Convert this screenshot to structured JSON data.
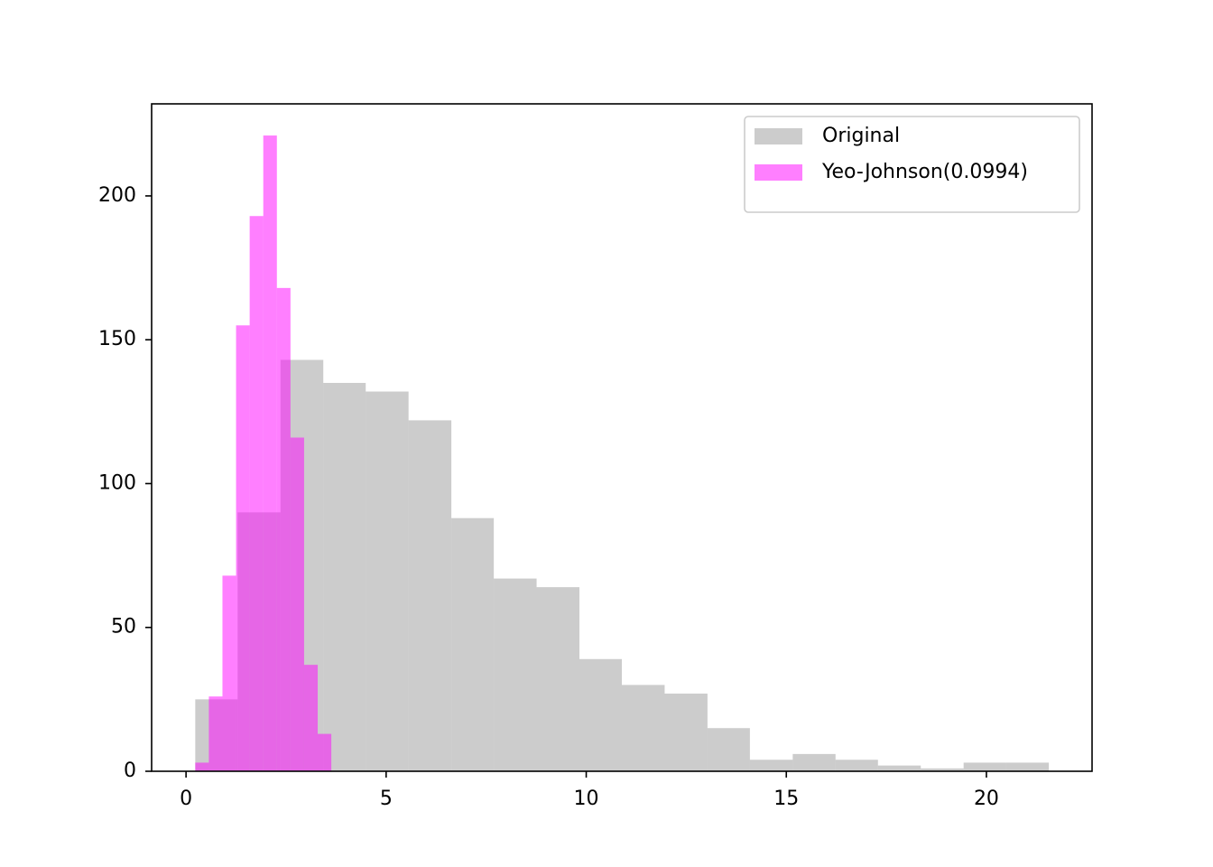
{
  "chart_data": {
    "type": "histogram",
    "series": [
      {
        "name": "Original",
        "color": "gray",
        "alpha": 0.4,
        "bins": [
          0.23,
          1.29,
          2.36,
          3.43,
          4.49,
          5.56,
          6.63,
          7.69,
          8.76,
          9.83,
          10.89,
          11.96,
          13.03,
          14.09,
          15.16,
          16.23,
          17.29,
          18.36,
          19.43,
          20.49,
          21.56
        ],
        "values": [
          25,
          90,
          143,
          135,
          132,
          122,
          88,
          67,
          64,
          39,
          30,
          27,
          15,
          4,
          6,
          4,
          2,
          1,
          3,
          3
        ]
      },
      {
        "name": "Yeo-Johnson(0.0994)",
        "color": "magenta",
        "alpha": 0.5,
        "bins": [
          0.23,
          0.57,
          0.91,
          1.25,
          1.59,
          1.93,
          2.27,
          2.61,
          2.95,
          3.29,
          3.63
        ],
        "values": [
          3,
          26,
          68,
          155,
          193,
          221,
          168,
          116,
          37,
          13
        ]
      }
    ],
    "xlim": [
      -0.86,
      22.64
    ],
    "ylim": [
      0,
      232
    ],
    "xticks": [
      0,
      5,
      10,
      15,
      20
    ],
    "yticks": [
      0,
      50,
      100,
      150,
      200
    ],
    "legend": "upper right"
  }
}
